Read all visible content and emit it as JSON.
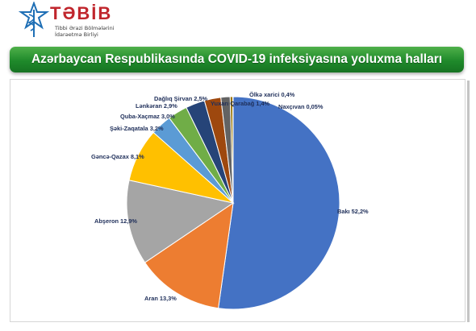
{
  "logo": {
    "word": "TƏBİB",
    "sub_line1": "Tibbi Ərazi Bölmələrini",
    "sub_line2": "İdarəetmə Birliyi",
    "brand_color": "#c0262d",
    "emblem_color": "#1f6fb5"
  },
  "banner": {
    "title": "Azərbaycan Respublikasında COVID-19 infeksiyasına yoluxma halları",
    "color": "#1f8a2b"
  },
  "chart_data": {
    "type": "pie",
    "title": "Azərbaycan Respublikasında COVID-19 infeksiyasına yoluxma halları",
    "unit": "%",
    "slices": [
      {
        "label": "Bakı",
        "value": 52.2,
        "display": "Bakı  52,2%",
        "color": "#4472c4"
      },
      {
        "label": "Aran",
        "value": 13.3,
        "display": "Aran 13,3%",
        "color": "#ed7d31"
      },
      {
        "label": "Abşeron",
        "value": 12.9,
        "display": "Abşeron 12,9%",
        "color": "#a5a5a5"
      },
      {
        "label": "Gəncə-Qazax",
        "value": 8.1,
        "display": "Gəncə-Qazax 8,1%",
        "color": "#ffc000"
      },
      {
        "label": "Şəki-Zaqatala",
        "value": 3.2,
        "display": "Şəki-Zaqatala 3,2%",
        "color": "#5b9bd5"
      },
      {
        "label": "Quba-Xaçmaz",
        "value": 3.0,
        "display": "Quba-Xaçmaz 3,0%",
        "color": "#70ad47"
      },
      {
        "label": "Lənkəran",
        "value": 2.9,
        "display": "Lənkəran 2,9%",
        "color": "#264478"
      },
      {
        "label": "Dağlıq Şirvan",
        "value": 2.5,
        "display": "Dağlıq Şirvan 2,5%",
        "color": "#9e480e"
      },
      {
        "label": "Yuxarı Qarabağ",
        "value": 1.4,
        "display": "Yuxarı Qarabağ 1,4%",
        "color": "#636363"
      },
      {
        "label": "Ölkə xarici",
        "value": 0.4,
        "display": "Ölkə xarici 0,4%",
        "color": "#997300"
      },
      {
        "label": "Naxçıvan",
        "value": 0.05,
        "display": "Naxçıvan 0,05%",
        "color": "#2e75b6"
      }
    ]
  }
}
